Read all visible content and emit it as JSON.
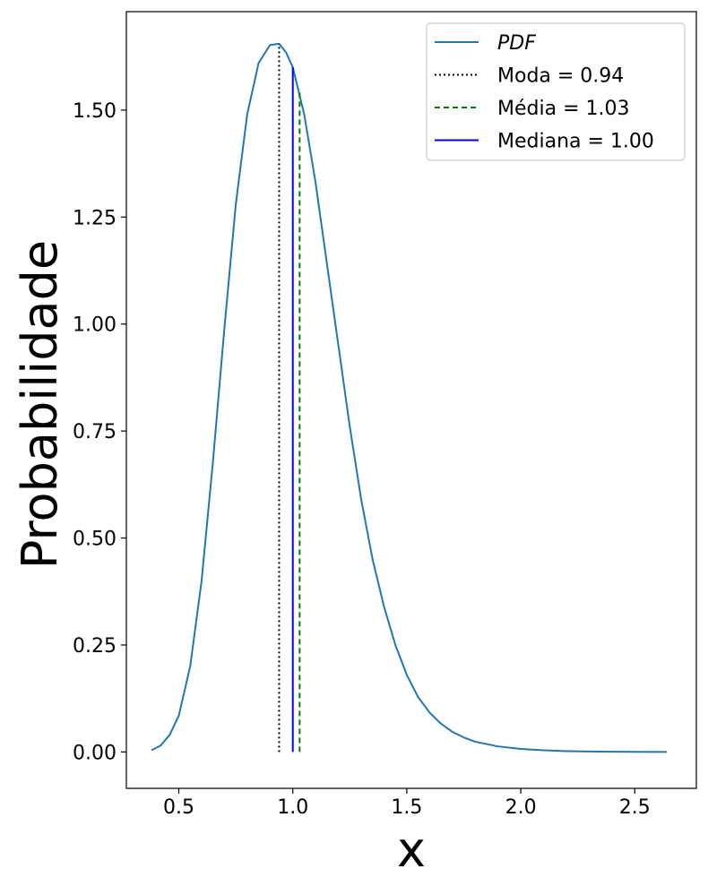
{
  "chart_data": {
    "type": "line",
    "title": "",
    "xlabel": "x",
    "ylabel": "Probabilidade",
    "xlim": [
      0.27,
      2.77
    ],
    "ylim": [
      -0.085,
      1.73
    ],
    "xticks": [
      0.5,
      1.0,
      1.5,
      2.0,
      2.5
    ],
    "xtick_labels": [
      "0.5",
      "1.0",
      "1.5",
      "2.0",
      "2.5"
    ],
    "yticks": [
      0.0,
      0.25,
      0.5,
      0.75,
      1.0,
      1.25,
      1.5
    ],
    "ytick_labels": [
      "0.00",
      "0.25",
      "0.50",
      "0.75",
      "1.00",
      "1.25",
      "1.50"
    ],
    "grid": false,
    "legend_position": "upper-right",
    "series": [
      {
        "name": "PDF",
        "style": "solid",
        "color": "#1f77b4",
        "x": [
          0.38,
          0.42,
          0.46,
          0.5,
          0.55,
          0.6,
          0.65,
          0.7,
          0.75,
          0.8,
          0.85,
          0.9,
          0.94,
          0.97,
          1.0,
          1.05,
          1.1,
          1.15,
          1.2,
          1.25,
          1.3,
          1.35,
          1.4,
          1.45,
          1.5,
          1.55,
          1.6,
          1.65,
          1.7,
          1.75,
          1.8,
          1.9,
          2.0,
          2.1,
          2.2,
          2.3,
          2.4,
          2.5,
          2.64
        ],
        "y": [
          0.004,
          0.015,
          0.04,
          0.085,
          0.2,
          0.4,
          0.68,
          0.99,
          1.28,
          1.49,
          1.61,
          1.652,
          1.655,
          1.635,
          1.6,
          1.49,
          1.33,
          1.14,
          0.95,
          0.76,
          0.59,
          0.45,
          0.34,
          0.25,
          0.18,
          0.128,
          0.092,
          0.066,
          0.047,
          0.034,
          0.024,
          0.013,
          0.007,
          0.004,
          0.002,
          0.001,
          0.0005,
          0.0003,
          0.0001
        ]
      }
    ],
    "vlines": [
      {
        "name": "Moda = 0.94",
        "x": 0.94,
        "ymin": 0,
        "ymax": 1.655,
        "style": "dotted",
        "color": "#000000"
      },
      {
        "name": "Média = 1.03",
        "x": 1.03,
        "ymin": 0,
        "ymax": 1.55,
        "style": "dashed",
        "color": "#008000"
      },
      {
        "name": "Mediana = 1.00",
        "x": 1.0,
        "ymin": 0,
        "ymax": 1.6,
        "style": "solid",
        "color": "#0000ff"
      }
    ],
    "legend": [
      {
        "label": "PDF",
        "style": "solid",
        "color": "#1f77b4",
        "italic": true
      },
      {
        "label": "Moda = 0.94",
        "style": "dotted",
        "color": "#000000",
        "italic": false
      },
      {
        "label": "Média = 1.03",
        "style": "dashed",
        "color": "#008000",
        "italic": false
      },
      {
        "label": "Mediana = 1.00",
        "style": "solid",
        "color": "#0000ff",
        "italic": false
      }
    ]
  }
}
